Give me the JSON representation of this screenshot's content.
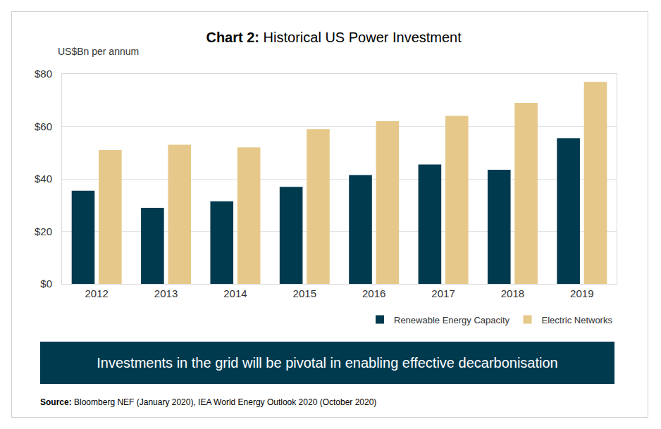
{
  "chart_data": {
    "type": "bar",
    "title": "Chart 2: Historical US Power Investment",
    "ylabel": "US$Bn per annum",
    "categories": [
      "2012",
      "2013",
      "2014",
      "2015",
      "2016",
      "2017",
      "2018",
      "2019"
    ],
    "series": [
      {
        "name": "Renewable Energy Capacity",
        "color": "#003a4f",
        "values": [
          35.5,
          29,
          31.5,
          37,
          41.5,
          45.5,
          43.5,
          55.5
        ]
      },
      {
        "name": "Electric Networks",
        "color": "#e6c98a",
        "values": [
          51,
          53,
          52,
          59,
          62,
          64,
          69,
          77
        ]
      }
    ],
    "ylim": [
      0,
      80
    ],
    "yticks": [
      {
        "value": 0,
        "label": "$0"
      },
      {
        "value": 20,
        "label": "$20"
      },
      {
        "value": 40,
        "label": "$40"
      },
      {
        "value": 60,
        "label": "$60"
      },
      {
        "value": 80,
        "label": "$80"
      }
    ],
    "grid": true,
    "legend": "bottom right",
    "annotations": [
      "Investments in the grid will be pivotal in enabling effective decarbonisation",
      "Source: Bloomberg NEF (January 2020), IEA World Energy Outlook 2020 (October 2020)"
    ]
  }
}
